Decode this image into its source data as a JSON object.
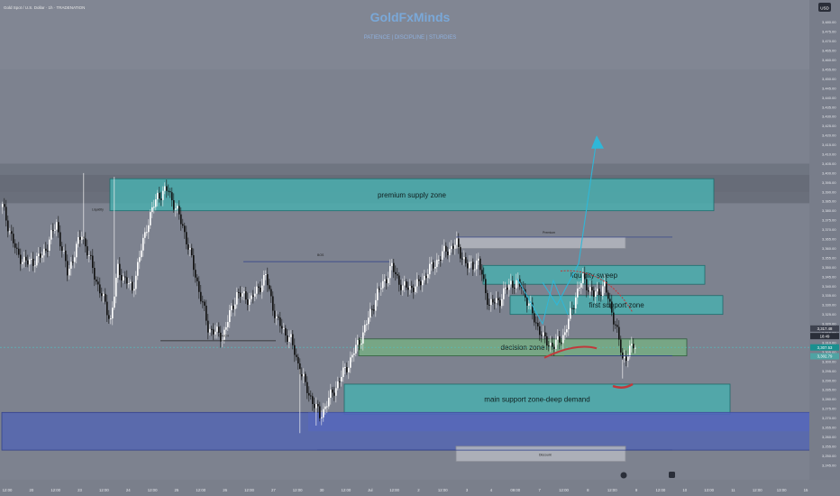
{
  "symbol_header": "Gold Spot / U.S. Dollar · 1h · TRADENATION",
  "watermark": "GoldFxMinds",
  "watermark_tags": "PATIENCE | DISCIPLINE | STURDIES",
  "currency_badge": "USD",
  "colors": {
    "background": "#7d828f",
    "candle_up": "#ffffff",
    "candle_down": "#111111",
    "teal_zone": "#3fa3a3",
    "green_zone": "#6aa17a",
    "blue_zone": "#5264b8",
    "projection_line": "#2fb7d8",
    "curve_red": "#c0393b"
  },
  "chart_data": {
    "type": "candlestick",
    "ylim": [
      3243,
      3488
    ],
    "y_ticks": [
      "3,480.00",
      "3,475.00",
      "3,470.00",
      "3,465.00",
      "3,460.00",
      "3,455.00",
      "3,450.00",
      "3,445.00",
      "3,440.00",
      "3,435.00",
      "3,430.00",
      "3,425.00",
      "3,420.00",
      "3,415.00",
      "3,410.00",
      "3,405.00",
      "3,400.00",
      "3,395.00",
      "3,390.00",
      "3,385.00",
      "3,380.00",
      "3,375.00",
      "3,370.00",
      "3,365.00",
      "3,360.00",
      "3,355.00",
      "3,350.00",
      "3,345.00",
      "3,340.00",
      "3,335.00",
      "3,330.00",
      "3,325.00",
      "3,320.00",
      "3,315.00",
      "3,310.00",
      "3,305.00",
      "3,300.00",
      "3,295.00",
      "3,290.00",
      "3,285.00",
      "3,280.00",
      "3,275.00",
      "3,270.00",
      "3,265.00",
      "3,260.00",
      "3,255.00",
      "3,250.00",
      "3,245.00"
    ],
    "x_ticks": [
      "12:00",
      "20",
      "12:00",
      "23",
      "12:00",
      "24",
      "12:00",
      "25",
      "12:00",
      "26",
      "12:00",
      "27",
      "12:00",
      "30",
      "12:00",
      "Jul",
      "12:00",
      "2",
      "12:00",
      "3",
      "4",
      "09:00",
      "7",
      "12:00",
      "8",
      "12:00",
      "9",
      "12:00",
      "10",
      "13:00",
      "11",
      "12:00",
      "13:00",
      "15"
    ],
    "price_labels": [
      {
        "text": "3,317.48",
        "price": 3317.5
      },
      {
        "text": "18:49",
        "price": 3313.5
      },
      {
        "text": "3,307.53",
        "price": 3307.5
      },
      {
        "text": "3,302.79",
        "price": 3302.8
      }
    ],
    "key_points": [
      {
        "i": 0,
        "v": 3382
      },
      {
        "i": 8,
        "v": 3357
      },
      {
        "i": 14,
        "v": 3352
      },
      {
        "i": 22,
        "v": 3356
      },
      {
        "i": 30,
        "v": 3373
      },
      {
        "i": 36,
        "v": 3347
      },
      {
        "i": 44,
        "v": 3368
      },
      {
        "i": 52,
        "v": 3343
      },
      {
        "i": 60,
        "v": 3322
      },
      {
        "i": 64,
        "v": 3349
      },
      {
        "i": 72,
        "v": 3338
      },
      {
        "i": 80,
        "v": 3372
      },
      {
        "i": 86,
        "v": 3388
      },
      {
        "i": 92,
        "v": 3391
      },
      {
        "i": 100,
        "v": 3372
      },
      {
        "i": 106,
        "v": 3350
      },
      {
        "i": 114,
        "v": 3318
      },
      {
        "i": 122,
        "v": 3313
      },
      {
        "i": 130,
        "v": 3336
      },
      {
        "i": 138,
        "v": 3333
      },
      {
        "i": 146,
        "v": 3345
      },
      {
        "i": 152,
        "v": 3322
      },
      {
        "i": 160,
        "v": 3311
      },
      {
        "i": 168,
        "v": 3287
      },
      {
        "i": 176,
        "v": 3271
      },
      {
        "i": 184,
        "v": 3285
      },
      {
        "i": 192,
        "v": 3299
      },
      {
        "i": 200,
        "v": 3315
      },
      {
        "i": 208,
        "v": 3336
      },
      {
        "i": 216,
        "v": 3350
      },
      {
        "i": 222,
        "v": 3339
      },
      {
        "i": 230,
        "v": 3340
      },
      {
        "i": 238,
        "v": 3350
      },
      {
        "i": 246,
        "v": 3359
      },
      {
        "i": 252,
        "v": 3362
      },
      {
        "i": 258,
        "v": 3350
      },
      {
        "i": 264,
        "v": 3353
      },
      {
        "i": 270,
        "v": 3330
      },
      {
        "i": 276,
        "v": 3333
      },
      {
        "i": 282,
        "v": 3342
      },
      {
        "i": 288,
        "v": 3340
      },
      {
        "i": 294,
        "v": 3325
      },
      {
        "i": 300,
        "v": 3312
      },
      {
        "i": 306,
        "v": 3308
      },
      {
        "i": 312,
        "v": 3315
      },
      {
        "i": 318,
        "v": 3335
      },
      {
        "i": 322,
        "v": 3344
      },
      {
        "i": 328,
        "v": 3335
      },
      {
        "i": 334,
        "v": 3340
      },
      {
        "i": 340,
        "v": 3320
      },
      {
        "i": 344,
        "v": 3301
      },
      {
        "i": 350,
        "v": 3308
      }
    ],
    "zones": [
      {
        "name": "premium-supply-zone",
        "label": "premium supply zone",
        "color": "teal",
        "from": 3380,
        "to": 3397,
        "i0": 60,
        "i1": 395
      },
      {
        "name": "liquidity-sweep-zone",
        "label": "liquidity sweep",
        "color": "teal",
        "from": 3341,
        "to": 3351,
        "i0": 267,
        "i1": 390
      },
      {
        "name": "first-support-zone",
        "label": "first support zone",
        "color": "teal",
        "from": 3325,
        "to": 3335,
        "i0": 282,
        "i1": 400
      },
      {
        "name": "decision-zone",
        "label": "decision zone",
        "color": "green",
        "from": 3303,
        "to": 3312,
        "i0": 198,
        "i1": 380
      },
      {
        "name": "main-support-zone",
        "label": "main support zone-deep demand",
        "color": "teal",
        "from": 3272,
        "to": 3288,
        "i0": 190,
        "i1": 404
      },
      {
        "name": "deep-blue-zone",
        "label": "",
        "color": "blue",
        "from": 3253,
        "to": 3273,
        "i0": 0,
        "i1": 450
      },
      {
        "name": "premium-grey-zone",
        "label": "",
        "color": "grey",
        "from": 3360,
        "to": 3366,
        "i0": 252,
        "i1": 346
      },
      {
        "name": "discount-grey-zone",
        "label": "",
        "color": "grey",
        "from": 3247,
        "to": 3255,
        "i0": 252,
        "i1": 346
      }
    ],
    "annotations": [
      "Premium",
      "Discount",
      "CHoCH",
      "BOS",
      "Liquidity"
    ]
  }
}
